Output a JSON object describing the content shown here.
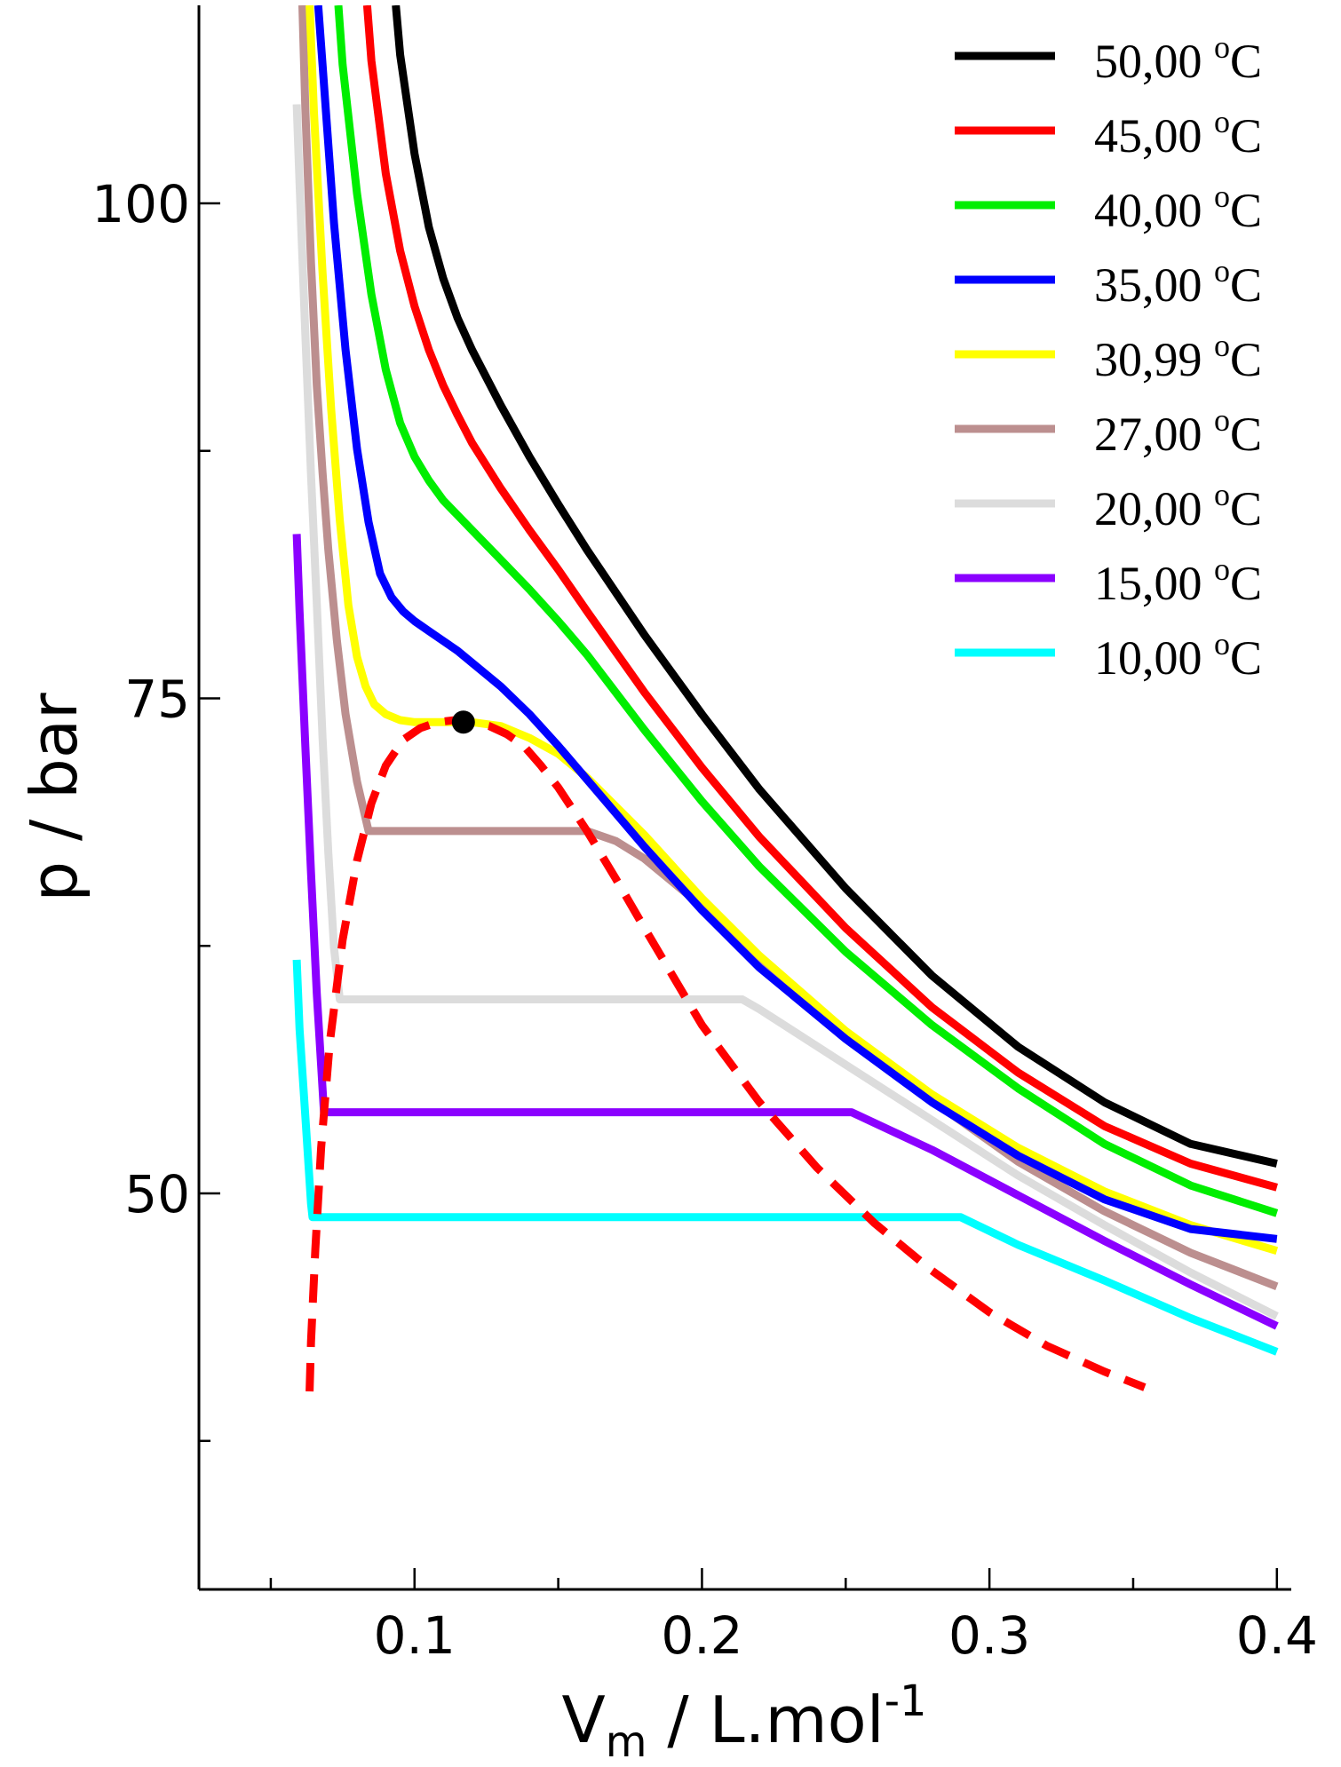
{
  "chart_data": {
    "type": "line",
    "title": "",
    "xlabel": "V",
    "xlabel_sub": "m",
    "xlabel_unit": " / L.mol",
    "xlabel_sup": "-1",
    "ylabel": "p / bar",
    "xlim": [
      0.025,
      0.405
    ],
    "ylim": [
      30,
      110
    ],
    "xticks": [
      0.1,
      0.2,
      0.3,
      0.4
    ],
    "xtick_labels": [
      "0.1",
      "0.2",
      "0.3",
      "0.4"
    ],
    "xminor": [
      0.05,
      0.15,
      0.25,
      0.35
    ],
    "yticks": [
      50,
      75,
      100
    ],
    "ytick_labels": [
      "50",
      "75",
      "100"
    ],
    "yminor": [
      37.5,
      62.5,
      87.5
    ],
    "legend_position": "top-right",
    "degree_symbol": "o",
    "unit_letter": "C",
    "series": [
      {
        "name": "50,00",
        "color": "#000000",
        "x": [
          0.0935,
          0.095,
          0.1,
          0.105,
          0.11,
          0.115,
          0.12,
          0.13,
          0.14,
          0.15,
          0.16,
          0.18,
          0.2,
          0.22,
          0.25,
          0.28,
          0.31,
          0.34,
          0.37,
          0.4
        ],
        "y": [
          110,
          107.5,
          102.5,
          98.8,
          96.2,
          94.2,
          92.6,
          89.8,
          87.2,
          84.8,
          82.5,
          78.2,
          74.2,
          70.4,
          65.4,
          61.0,
          57.4,
          54.6,
          52.5,
          51.5
        ]
      },
      {
        "name": "45,00",
        "color": "#ff0000",
        "x": [
          0.0835,
          0.085,
          0.09,
          0.095,
          0.1,
          0.105,
          0.11,
          0.115,
          0.12,
          0.13,
          0.14,
          0.15,
          0.16,
          0.18,
          0.2,
          0.22,
          0.25,
          0.28,
          0.31,
          0.34,
          0.37,
          0.4
        ],
        "y": [
          110,
          107.2,
          101.5,
          97.6,
          94.8,
          92.6,
          90.8,
          89.3,
          87.9,
          85.6,
          83.5,
          81.5,
          79.4,
          75.3,
          71.5,
          68.0,
          63.4,
          59.4,
          56.1,
          53.4,
          51.5,
          50.3
        ]
      },
      {
        "name": "40,00",
        "color": "#00ee00",
        "x": [
          0.0735,
          0.075,
          0.08,
          0.085,
          0.09,
          0.095,
          0.1,
          0.105,
          0.11,
          0.12,
          0.13,
          0.14,
          0.15,
          0.16,
          0.18,
          0.2,
          0.22,
          0.25,
          0.28,
          0.31,
          0.34,
          0.37,
          0.4
        ],
        "y": [
          110,
          107.0,
          100.5,
          95.4,
          91.6,
          88.9,
          87.2,
          86.0,
          85.0,
          83.5,
          82.0,
          80.5,
          78.9,
          77.2,
          73.4,
          69.8,
          66.5,
          62.2,
          58.5,
          55.3,
          52.5,
          50.4,
          49.0
        ]
      },
      {
        "name": "35,00",
        "color": "#0000ff",
        "x": [
          0.0665,
          0.068,
          0.072,
          0.076,
          0.08,
          0.084,
          0.088,
          0.092,
          0.096,
          0.1,
          0.105,
          0.11,
          0.115,
          0.12,
          0.13,
          0.14,
          0.15,
          0.16,
          0.18,
          0.2,
          0.22,
          0.25,
          0.28,
          0.31,
          0.34,
          0.37,
          0.4
        ],
        "y": [
          110,
          107.0,
          99.0,
          92.6,
          87.6,
          83.9,
          81.3,
          80.1,
          79.4,
          78.9,
          78.4,
          77.9,
          77.4,
          76.8,
          75.6,
          74.2,
          72.6,
          70.9,
          67.5,
          64.3,
          61.4,
          57.8,
          54.6,
          51.9,
          49.7,
          48.2,
          47.7
        ]
      },
      {
        "name": "30,99",
        "color": "#ffff00",
        "x": [
          0.0635,
          0.065,
          0.068,
          0.071,
          0.074,
          0.077,
          0.08,
          0.083,
          0.086,
          0.09,
          0.095,
          0.1,
          0.11,
          0.12,
          0.13,
          0.14,
          0.15,
          0.16,
          0.18,
          0.2,
          0.22,
          0.25,
          0.28,
          0.31,
          0.34,
          0.37,
          0.4
        ],
        "y": [
          110,
          104.6,
          96.5,
          89.6,
          84.0,
          79.7,
          77.1,
          75.6,
          74.7,
          74.2,
          73.9,
          73.8,
          73.8,
          73.8,
          73.6,
          73.0,
          72.2,
          71.0,
          68.1,
          64.9,
          62.0,
          58.2,
          55.0,
          52.3,
          50.1,
          48.4,
          47.1
        ]
      },
      {
        "name": "27,00",
        "color": "#bc8f8f",
        "x": [
          0.061,
          0.062,
          0.064,
          0.066,
          0.068,
          0.07,
          0.073,
          0.076,
          0.08,
          0.084,
          0.1,
          0.12,
          0.14,
          0.16,
          0.17,
          0.18,
          0.2,
          0.22,
          0.25,
          0.28,
          0.31,
          0.34,
          0.37,
          0.4
        ],
        "y": [
          110,
          104.8,
          97.0,
          90.8,
          86.4,
          82.5,
          77.9,
          74.2,
          70.8,
          68.3,
          68.3,
          68.3,
          68.3,
          68.3,
          67.8,
          66.9,
          64.5,
          61.8,
          57.9,
          54.7,
          51.6,
          49.1,
          47.0,
          45.3
        ]
      },
      {
        "name": "20,00",
        "color": "#dcdcdc",
        "x": [
          0.059,
          0.06,
          0.062,
          0.064,
          0.066,
          0.068,
          0.07,
          0.072,
          0.074,
          0.1,
          0.15,
          0.2,
          0.214,
          0.22,
          0.25,
          0.28,
          0.31,
          0.34,
          0.37,
          0.4
        ],
        "y": [
          105,
          101.0,
          93.4,
          86.3,
          79.8,
          73.0,
          67.2,
          62.4,
          59.8,
          59.8,
          59.8,
          59.8,
          59.8,
          59.3,
          56.5,
          53.7,
          50.9,
          48.4,
          46.0,
          43.8
        ]
      },
      {
        "name": "15,00",
        "color": "#8b00ff",
        "x": [
          0.059,
          0.06,
          0.062,
          0.064,
          0.066,
          0.0685,
          0.1,
          0.15,
          0.2,
          0.25,
          0.252,
          0.28,
          0.31,
          0.34,
          0.37,
          0.4
        ],
        "y": [
          83.3,
          79.4,
          72.6,
          66.2,
          60.1,
          54.1,
          54.1,
          54.1,
          54.1,
          54.1,
          54.1,
          52.2,
          49.9,
          47.6,
          45.4,
          43.3
        ]
      },
      {
        "name": "10,00",
        "color": "#00ffff",
        "x": [
          0.059,
          0.06,
          0.062,
          0.064,
          0.0645,
          0.1,
          0.15,
          0.2,
          0.25,
          0.29,
          0.31,
          0.34,
          0.37,
          0.4
        ],
        "y": [
          61.8,
          58.3,
          53.9,
          49.5,
          48.8,
          48.8,
          48.8,
          48.8,
          48.8,
          48.8,
          47.4,
          45.6,
          43.7,
          42.0
        ]
      }
    ],
    "coexistence_curve": {
      "color": "#ff0000",
      "style": "dashed",
      "x": [
        0.0635,
        0.064,
        0.0655,
        0.0675,
        0.0705,
        0.075,
        0.08,
        0.085,
        0.09,
        0.096,
        0.102,
        0.108,
        0.114,
        0.12,
        0.126,
        0.132,
        0.138,
        0.144,
        0.15,
        0.16,
        0.17,
        0.18,
        0.2,
        0.22,
        0.24,
        0.26,
        0.28,
        0.3,
        0.32,
        0.34,
        0.354
      ],
      "y": [
        40.0,
        42.5,
        47.2,
        52.3,
        57.6,
        62.8,
        66.8,
        69.7,
        71.6,
        72.9,
        73.5,
        73.8,
        73.9,
        73.8,
        73.6,
        73.2,
        72.6,
        71.6,
        70.5,
        68.3,
        65.9,
        63.4,
        58.5,
        54.6,
        51.3,
        48.5,
        46.1,
        44.0,
        42.3,
        41.0,
        40.2
      ]
    },
    "critical_point": {
      "x": 0.117,
      "y": 73.8,
      "color": "#000000"
    }
  }
}
